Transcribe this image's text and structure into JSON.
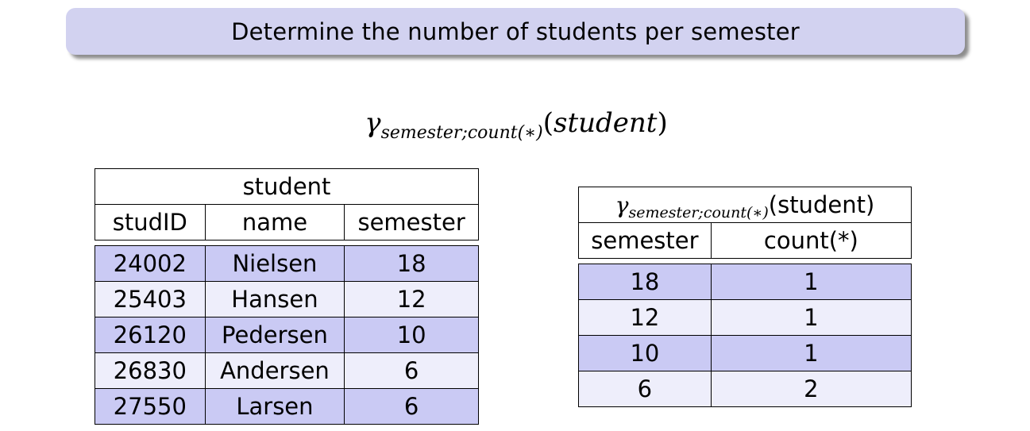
{
  "title": "Determine the number of students per semester",
  "formula": {
    "gamma": "γ",
    "subscript": "semester;count(∗)",
    "argument_open": "(",
    "argument": "student",
    "argument_close": ")"
  },
  "student_table": {
    "caption": "student",
    "headers": [
      "studID",
      "name",
      "semester"
    ],
    "rows": [
      [
        "24002",
        "Nielsen",
        "18"
      ],
      [
        "25403",
        "Hansen",
        "12"
      ],
      [
        "26120",
        "Pedersen",
        "10"
      ],
      [
        "26830",
        "Andersen",
        "6"
      ],
      [
        "27550",
        "Larsen",
        "6"
      ]
    ]
  },
  "result_table": {
    "caption_gamma": "γ",
    "caption_subscript": "semester;count(∗)",
    "caption_argument": "(student)",
    "headers": [
      "semester",
      "count(*)"
    ],
    "rows": [
      [
        "18",
        "1"
      ],
      [
        "12",
        "1"
      ],
      [
        "10",
        "1"
      ],
      [
        "6",
        "2"
      ]
    ]
  },
  "colors": {
    "title_background": "#d2d2f0",
    "row_dark": "#cacaf4",
    "row_light": "#eeeefb"
  }
}
